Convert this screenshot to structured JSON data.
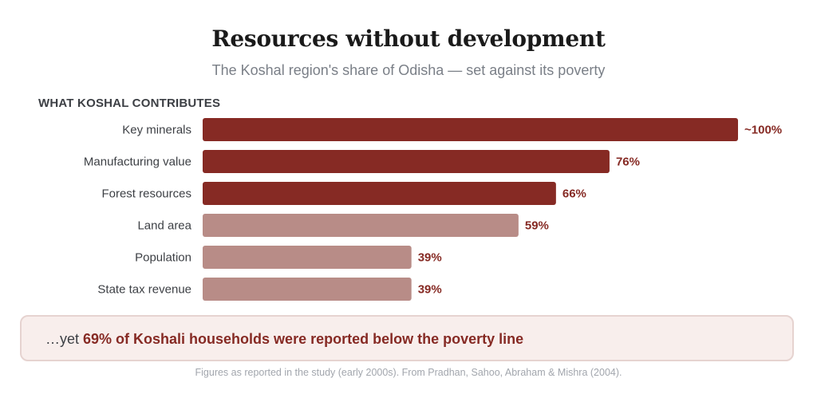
{
  "title": "Resources without development",
  "subtitle": "The Koshal region's share of Odisha — set against its poverty",
  "section_label": "WHAT KOSHAL CONTRIBUTES",
  "colors": {
    "dark_bar": "#862a24",
    "light_bar": "#b88c87",
    "value_label": "#862a24",
    "category_label": "#3c3f44"
  },
  "chart_data": {
    "type": "bar",
    "orientation": "horizontal",
    "categories": [
      "Key minerals",
      "Manufacturing value",
      "Forest resources",
      "Land area",
      "Population",
      "State tax revenue"
    ],
    "values": [
      100,
      76,
      66,
      59,
      39,
      39
    ],
    "value_labels": [
      "~100%",
      "76%",
      "66%",
      "59%",
      "39%",
      "39%"
    ],
    "emphasis": [
      "dark",
      "dark",
      "dark",
      "light",
      "light",
      "light"
    ],
    "xlim": [
      0,
      100
    ],
    "grid": false,
    "legend": "none"
  },
  "callout": {
    "prefix": "…yet ",
    "highlight": "69% of Koshali households were reported below the poverty line"
  },
  "source": "Figures as reported in the study (early 2000s). From Pradhan, Sahoo, Abraham & Mishra (2004)."
}
